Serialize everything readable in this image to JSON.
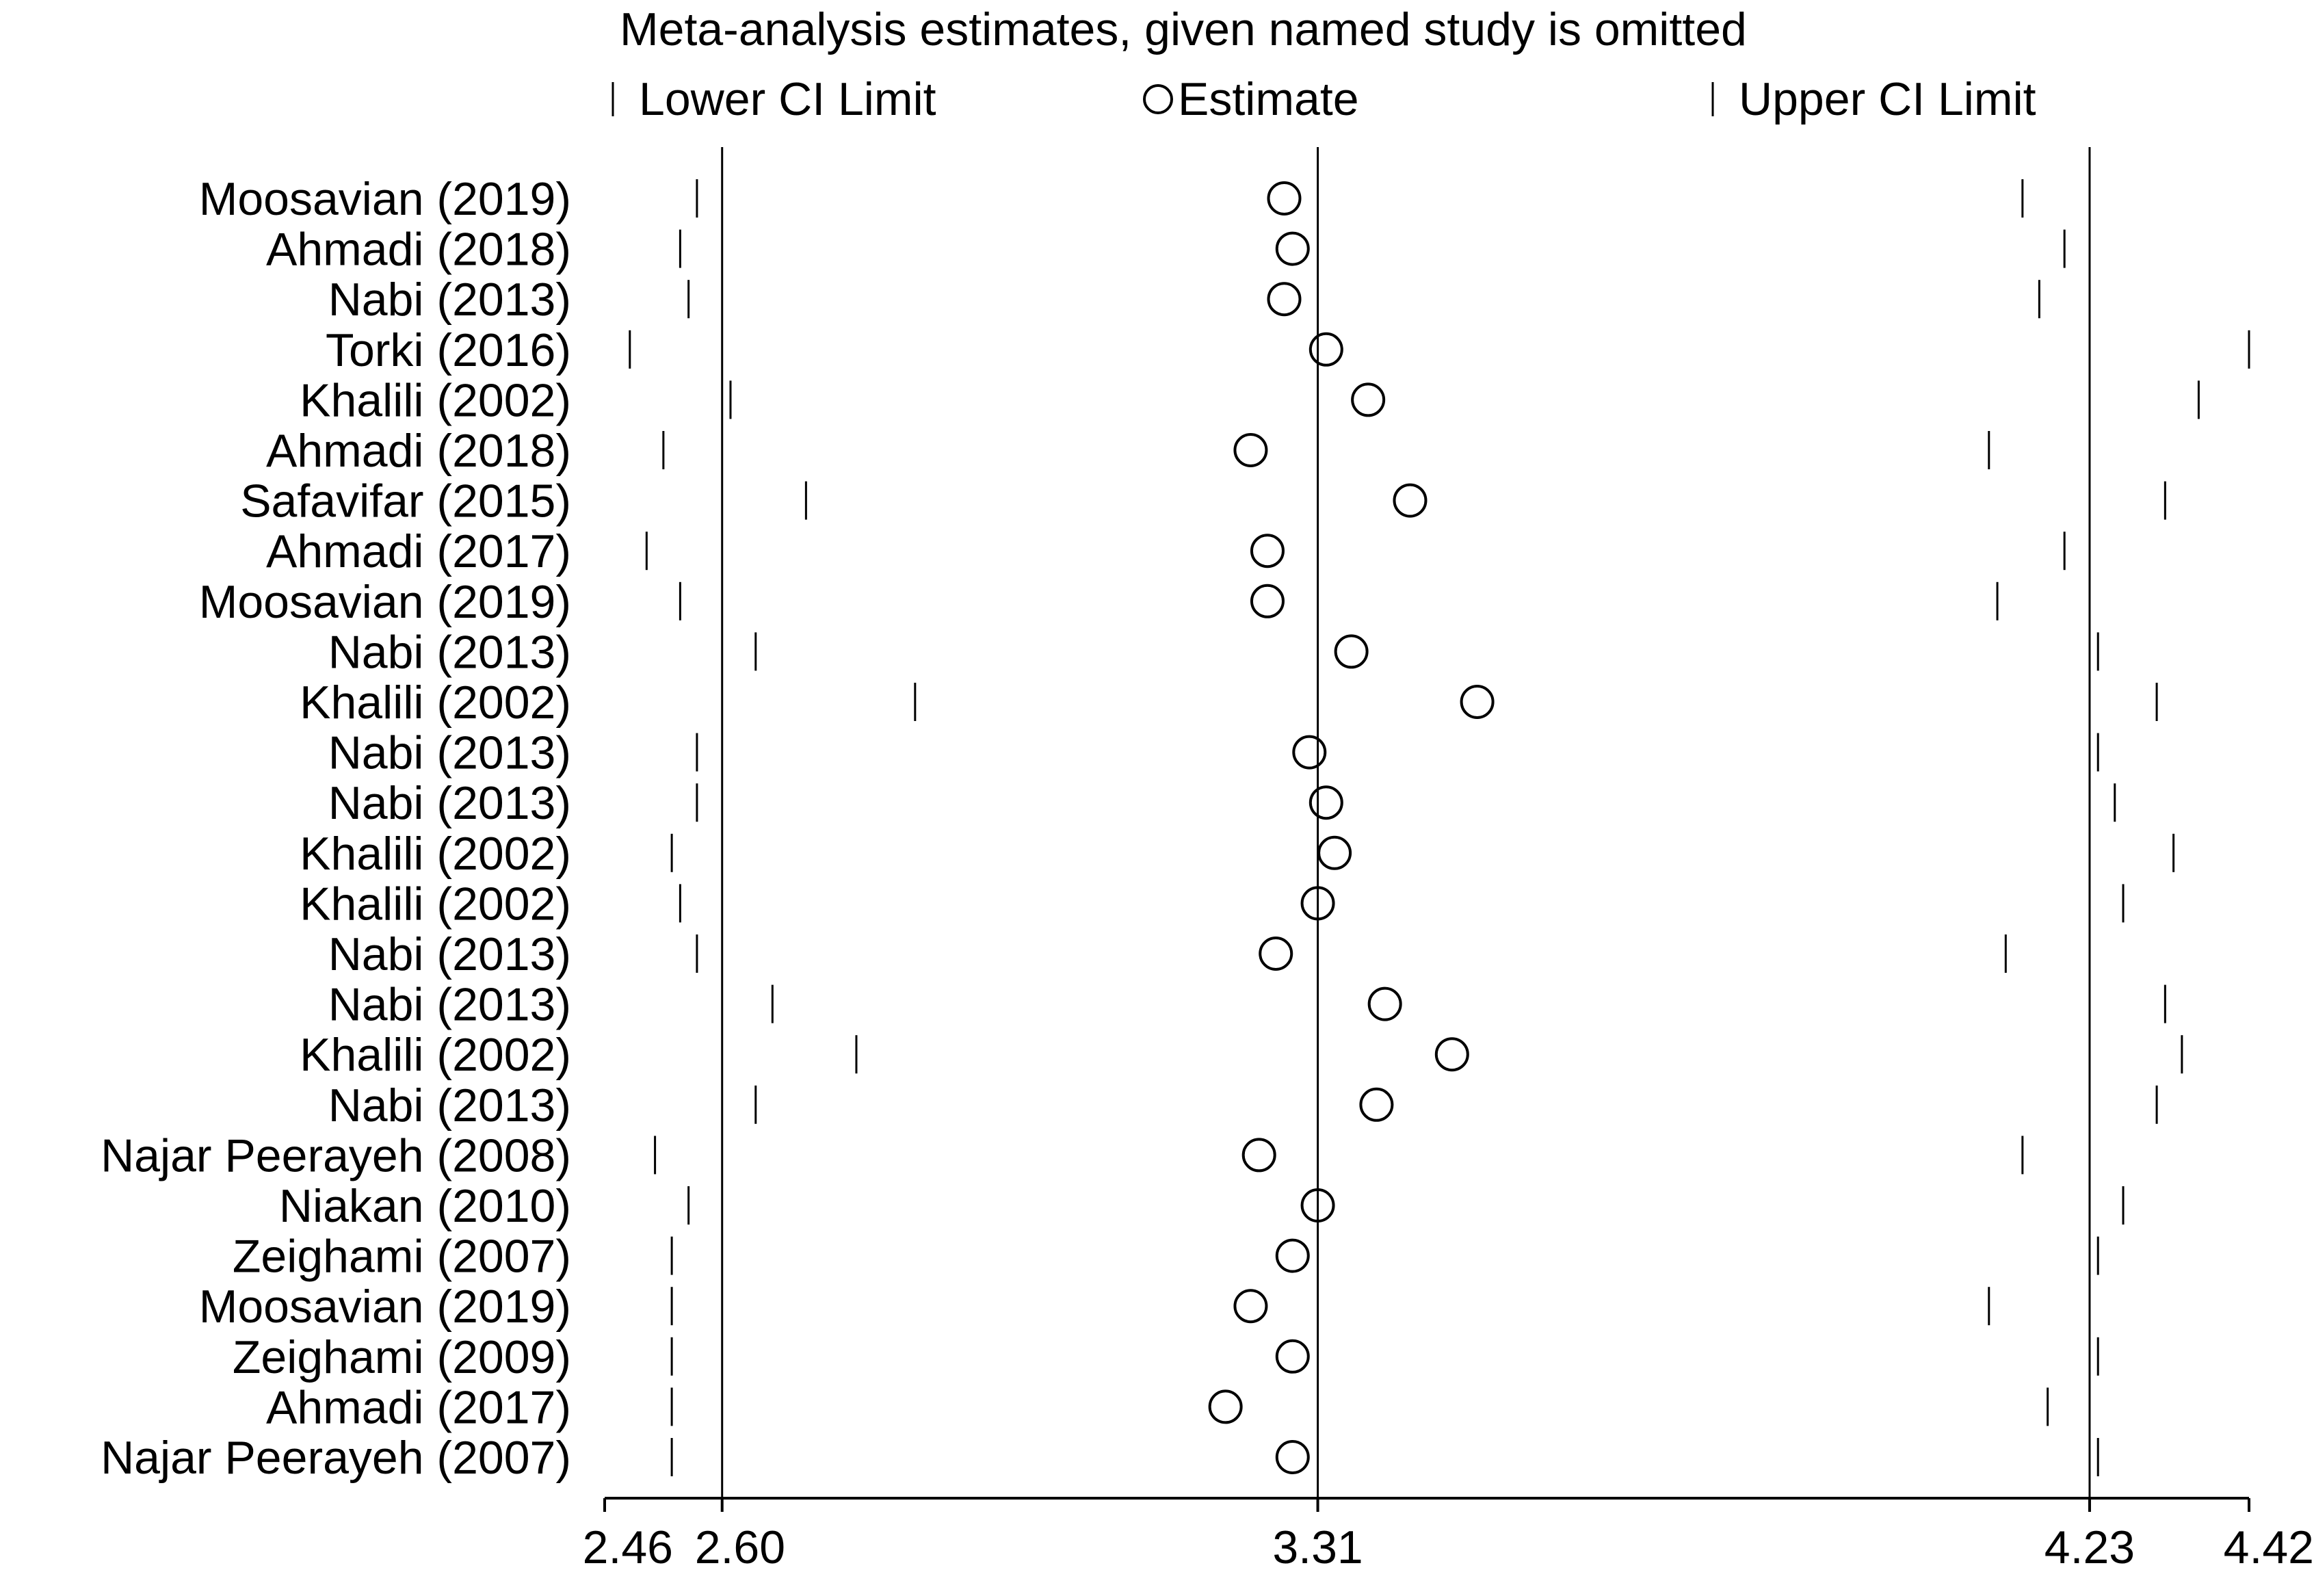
{
  "chart_data": {
    "type": "scatter",
    "title": "Meta-analysis estimates, given named study is omitted",
    "legend": {
      "placement": "top",
      "items": [
        {
          "symbol": "line",
          "label": "Lower CI Limit"
        },
        {
          "symbol": "circle",
          "label": "Estimate"
        },
        {
          "symbol": "line",
          "label": "Upper CI Limit"
        }
      ]
    },
    "xlim": [
      2.46,
      4.42
    ],
    "x_ticks": [
      {
        "value": 2.46,
        "label": "2.46"
      },
      {
        "value": 2.6,
        "label": "2.60"
      },
      {
        "value": 3.31,
        "label": "3.31"
      },
      {
        "value": 4.23,
        "label": "4.23"
      },
      {
        "value": 4.42,
        "label": "4.42"
      }
    ],
    "reference_lines": [
      2.6,
      3.31,
      4.23
    ],
    "studies": [
      {
        "label": "Moosavian  (2019)",
        "lower": 2.57,
        "estimate": 3.27,
        "upper": 4.15
      },
      {
        "label": "Ahmadi (2018)",
        "lower": 2.55,
        "estimate": 3.28,
        "upper": 4.2
      },
      {
        "label": "Nabi (2013)",
        "lower": 2.56,
        "estimate": 3.27,
        "upper": 4.17
      },
      {
        "label": "Torki (2016)",
        "lower": 2.49,
        "estimate": 3.32,
        "upper": 4.42
      },
      {
        "label": "Khalili (2002)",
        "lower": 2.61,
        "estimate": 3.37,
        "upper": 4.36
      },
      {
        "label": "Ahmadi (2018)",
        "lower": 2.53,
        "estimate": 3.23,
        "upper": 4.11
      },
      {
        "label": "Safavifar (2015)",
        "lower": 2.7,
        "estimate": 3.42,
        "upper": 4.32
      },
      {
        "label": "Ahmadi (2017)",
        "lower": 2.51,
        "estimate": 3.25,
        "upper": 4.2
      },
      {
        "label": "Moosavian  (2019)",
        "lower": 2.55,
        "estimate": 3.25,
        "upper": 4.12
      },
      {
        "label": "Nabi (2013)",
        "lower": 2.64,
        "estimate": 3.35,
        "upper": 4.24
      },
      {
        "label": "Khalili (2002)",
        "lower": 2.83,
        "estimate": 3.5,
        "upper": 4.31
      },
      {
        "label": "Nabi (2013)",
        "lower": 2.57,
        "estimate": 3.3,
        "upper": 4.24
      },
      {
        "label": "Nabi (2013)",
        "lower": 2.57,
        "estimate": 3.32,
        "upper": 4.26
      },
      {
        "label": "Khalili (2002)",
        "lower": 2.54,
        "estimate": 3.33,
        "upper": 4.33
      },
      {
        "label": "Khalili (2002)",
        "lower": 2.55,
        "estimate": 3.31,
        "upper": 4.27
      },
      {
        "label": "Nabi (2013)",
        "lower": 2.57,
        "estimate": 3.26,
        "upper": 4.13
      },
      {
        "label": "Nabi (2013)",
        "lower": 2.66,
        "estimate": 3.39,
        "upper": 4.32
      },
      {
        "label": "Khalili (2002)",
        "lower": 2.76,
        "estimate": 3.47,
        "upper": 4.34
      },
      {
        "label": "Nabi (2013)",
        "lower": 2.64,
        "estimate": 3.38,
        "upper": 4.31
      },
      {
        "label": "Najar Peerayeh  (2008)",
        "lower": 2.52,
        "estimate": 3.24,
        "upper": 4.15
      },
      {
        "label": "Niakan (2010)",
        "lower": 2.56,
        "estimate": 3.31,
        "upper": 4.27
      },
      {
        "label": "Zeighami (2007)",
        "lower": 2.54,
        "estimate": 3.28,
        "upper": 4.24
      },
      {
        "label": "Moosavian  (2019)",
        "lower": 2.54,
        "estimate": 3.23,
        "upper": 4.11
      },
      {
        "label": "Zeighami (2009)",
        "lower": 2.54,
        "estimate": 3.28,
        "upper": 4.24
      },
      {
        "label": "Ahmadi (2017)",
        "lower": 2.54,
        "estimate": 3.2,
        "upper": 4.18
      },
      {
        "label": "Najar Peerayeh  (2007)",
        "lower": 2.54,
        "estimate": 3.28,
        "upper": 4.24
      }
    ]
  }
}
